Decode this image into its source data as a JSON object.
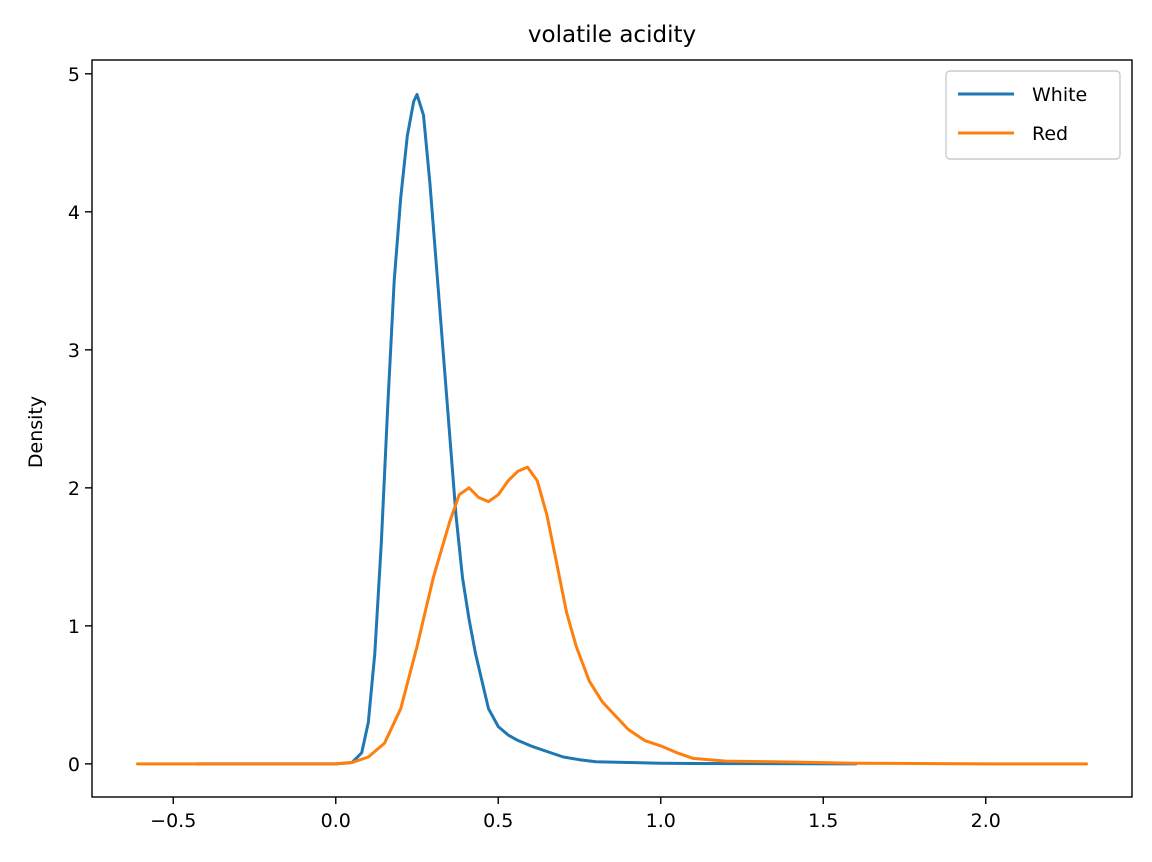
{
  "chart_data": {
    "type": "line",
    "title": "volatile acidity",
    "xlabel": "",
    "ylabel": "Density",
    "xlim": [
      -0.75,
      2.45
    ],
    "ylim": [
      -0.24,
      5.1
    ],
    "xticks": [
      -0.5,
      0.0,
      0.5,
      1.0,
      1.5,
      2.0
    ],
    "xtick_labels": [
      "−0.5",
      "0.0",
      "0.5",
      "1.0",
      "1.5",
      "2.0"
    ],
    "yticks": [
      0,
      1,
      2,
      3,
      4,
      5
    ],
    "ytick_labels": [
      "0",
      "1",
      "2",
      "3",
      "4",
      "5"
    ],
    "grid": false,
    "legend_position": "top-right",
    "series": [
      {
        "name": "White",
        "color": "#1f77b4",
        "points": [
          [
            -0.43,
            0.0
          ],
          [
            0.0,
            0.0
          ],
          [
            0.05,
            0.01
          ],
          [
            0.08,
            0.08
          ],
          [
            0.1,
            0.3
          ],
          [
            0.12,
            0.8
          ],
          [
            0.14,
            1.6
          ],
          [
            0.16,
            2.6
          ],
          [
            0.18,
            3.5
          ],
          [
            0.2,
            4.1
          ],
          [
            0.22,
            4.55
          ],
          [
            0.24,
            4.8
          ],
          [
            0.25,
            4.85
          ],
          [
            0.27,
            4.7
          ],
          [
            0.29,
            4.2
          ],
          [
            0.31,
            3.6
          ],
          [
            0.33,
            3.0
          ],
          [
            0.35,
            2.4
          ],
          [
            0.37,
            1.8
          ],
          [
            0.39,
            1.35
          ],
          [
            0.41,
            1.05
          ],
          [
            0.43,
            0.8
          ],
          [
            0.45,
            0.6
          ],
          [
            0.47,
            0.4
          ],
          [
            0.5,
            0.27
          ],
          [
            0.53,
            0.21
          ],
          [
            0.56,
            0.17
          ],
          [
            0.6,
            0.13
          ],
          [
            0.65,
            0.09
          ],
          [
            0.7,
            0.05
          ],
          [
            0.75,
            0.03
          ],
          [
            0.8,
            0.015
          ],
          [
            0.9,
            0.01
          ],
          [
            1.0,
            0.005
          ],
          [
            1.1,
            0.003
          ],
          [
            1.3,
            0.002
          ],
          [
            1.6,
            0.0
          ]
        ]
      },
      {
        "name": "Red",
        "color": "#ff7f0e",
        "points": [
          [
            -0.61,
            0.0
          ],
          [
            0.0,
            0.0
          ],
          [
            0.05,
            0.01
          ],
          [
            0.1,
            0.05
          ],
          [
            0.15,
            0.15
          ],
          [
            0.2,
            0.4
          ],
          [
            0.25,
            0.85
          ],
          [
            0.3,
            1.35
          ],
          [
            0.35,
            1.75
          ],
          [
            0.38,
            1.95
          ],
          [
            0.41,
            2.0
          ],
          [
            0.44,
            1.93
          ],
          [
            0.47,
            1.9
          ],
          [
            0.5,
            1.95
          ],
          [
            0.53,
            2.05
          ],
          [
            0.56,
            2.12
          ],
          [
            0.59,
            2.15
          ],
          [
            0.62,
            2.05
          ],
          [
            0.65,
            1.8
          ],
          [
            0.68,
            1.45
          ],
          [
            0.71,
            1.1
          ],
          [
            0.74,
            0.85
          ],
          [
            0.78,
            0.6
          ],
          [
            0.82,
            0.45
          ],
          [
            0.86,
            0.35
          ],
          [
            0.9,
            0.25
          ],
          [
            0.95,
            0.17
          ],
          [
            1.0,
            0.13
          ],
          [
            1.05,
            0.08
          ],
          [
            1.1,
            0.04
          ],
          [
            1.2,
            0.02
          ],
          [
            1.35,
            0.015
          ],
          [
            1.6,
            0.005
          ],
          [
            2.0,
            0.0
          ],
          [
            2.31,
            0.0
          ]
        ]
      }
    ]
  }
}
